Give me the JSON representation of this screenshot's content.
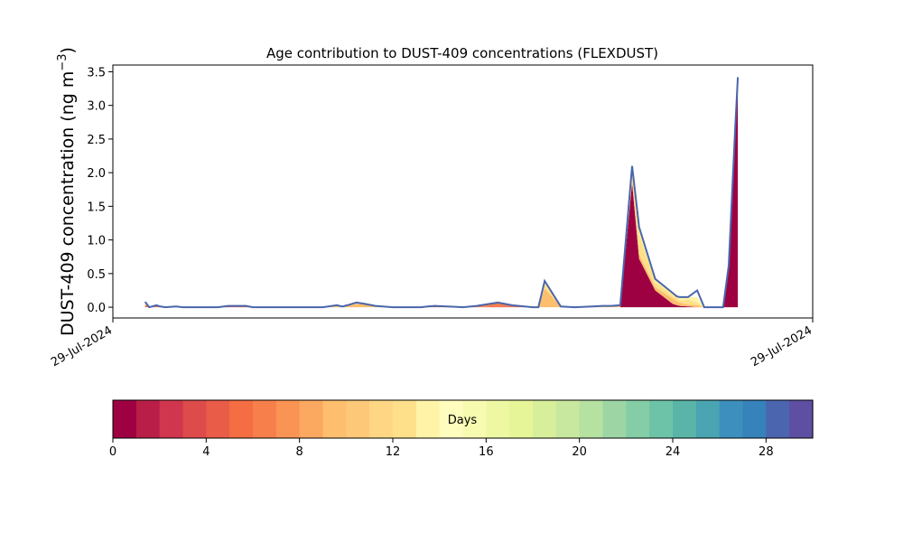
{
  "chart_data": {
    "type": "area",
    "title": "Age contribution to DUST-409 concentrations (FLEXDUST)",
    "ylabel_main": "DUST-409 concentration (ng m",
    "ylabel_sup": "−3",
    "ylabel_close": ")",
    "xlim": [
      0,
      1
    ],
    "ylim": [
      -0.16,
      3.6
    ],
    "yticks": [
      0.0,
      0.5,
      1.0,
      1.5,
      2.0,
      2.5,
      3.0,
      3.5
    ],
    "ytick_labels": [
      "0.0",
      "0.5",
      "1.0",
      "1.5",
      "2.0",
      "2.5",
      "3.0",
      "3.5"
    ],
    "xtick_labels": [
      "29-Jul-2024",
      "29-Jul-2024"
    ],
    "total_color": "#4a66ac",
    "x": [
      0.046,
      0.052,
      0.062,
      0.068,
      0.075,
      0.09,
      0.1,
      0.15,
      0.165,
      0.19,
      0.2,
      0.22,
      0.235,
      0.245,
      0.3,
      0.32,
      0.328,
      0.335,
      0.348,
      0.36,
      0.375,
      0.4,
      0.44,
      0.45,
      0.46,
      0.5,
      0.52,
      0.55,
      0.57,
      0.6,
      0.608,
      0.617,
      0.64,
      0.66,
      0.685,
      0.7,
      0.712,
      0.725,
      0.742,
      0.752,
      0.775,
      0.8,
      0.806,
      0.81,
      0.822,
      0.835,
      0.845,
      0.865,
      0.872,
      0.88,
      0.889,
      0.893
    ],
    "series": [
      {
        "day": 0,
        "color": "#9e0142",
        "values": [
          0,
          0,
          0,
          0,
          0,
          0,
          0,
          0,
          0,
          0,
          0,
          0,
          0,
          0,
          0,
          0,
          0,
          0,
          0,
          0,
          0,
          0,
          0,
          0,
          0,
          0,
          0,
          0,
          0,
          0,
          0,
          0,
          0,
          0,
          0,
          0,
          0,
          0,
          1.85,
          0.72,
          0.25,
          0.05,
          0.03,
          0.02,
          0.01,
          0,
          0,
          0,
          0,
          0.6,
          2.6,
          3.3
        ]
      },
      {
        "day": 3,
        "color": "#e95c47",
        "values": [
          0.02,
          0.0,
          0.01,
          0.0,
          0,
          0,
          0,
          0,
          0.01,
          0.01,
          0,
          0,
          0,
          0,
          0,
          0,
          0,
          0,
          0,
          0,
          0,
          0,
          0,
          0,
          0.01,
          0,
          0,
          0.01,
          0.01,
          0,
          0,
          0,
          0,
          0,
          0,
          0,
          0,
          0,
          0,
          0,
          0,
          0,
          0,
          0,
          0,
          0,
          0,
          0,
          0,
          0.01,
          0.01,
          0.01
        ]
      },
      {
        "day": 6,
        "color": "#f67f4b",
        "values": [
          0.02,
          0.0,
          0.01,
          0.0,
          0,
          0,
          0,
          0,
          0,
          0,
          0,
          0,
          0,
          0,
          0,
          0,
          0,
          0,
          0,
          0,
          0,
          0,
          0,
          0,
          0,
          0,
          0.02,
          0.06,
          0.02,
          0,
          0,
          0,
          0,
          0,
          0,
          0,
          0,
          0,
          0,
          0,
          0,
          0,
          0,
          0,
          0,
          0,
          0,
          0,
          0,
          0,
          0,
          0
        ]
      },
      {
        "day": 10,
        "color": "#fdbe6e",
        "values": [
          0.01,
          0.0,
          0.0,
          0.0,
          0,
          0,
          0,
          0,
          0.01,
          0.01,
          0,
          0,
          0,
          0,
          0,
          0.03,
          0.01,
          0.03,
          0.05,
          0.05,
          0.02,
          0,
          0,
          0.01,
          0.01,
          0,
          0,
          0,
          0,
          0,
          0,
          0.28,
          0.01,
          0,
          0.01,
          0.02,
          0.02,
          0.03,
          0.05,
          0.07,
          0.05,
          0.08,
          0.06,
          0.05,
          0.03,
          0.03,
          0.0,
          0,
          0,
          0.01,
          0.0,
          0.0
        ]
      },
      {
        "day": 12,
        "color": "#fee08b",
        "values": [
          0.01,
          0.0,
          0.0,
          0.0,
          0,
          0,
          0,
          0,
          0,
          0,
          0,
          0,
          0,
          0,
          0,
          0,
          0,
          0,
          0.02,
          0.0,
          0.0,
          0,
          0,
          0,
          0,
          0,
          0,
          0,
          0,
          0,
          0.0,
          0.07,
          0.0,
          0,
          0,
          0,
          0,
          0,
          0.1,
          0.3,
          0.08,
          0.05,
          0.05,
          0.03,
          0.07,
          0.04,
          0.0,
          0,
          0,
          0,
          0,
          0
        ]
      },
      {
        "day": 14,
        "color": "#fff3a8",
        "values": [
          0.01,
          0.0,
          0.0,
          0.0,
          0,
          0,
          0,
          0,
          0,
          0,
          0,
          0,
          0,
          0,
          0,
          0,
          0,
          0,
          0,
          0,
          0,
          0,
          0,
          0,
          0,
          0,
          0,
          0,
          0,
          0,
          0,
          0.04,
          0,
          0,
          0,
          0,
          0,
          0,
          0.1,
          0.1,
          0.04,
          0.03,
          0.02,
          0.05,
          0.04,
          0.08,
          0.0,
          0,
          0,
          0,
          0,
          0
        ]
      }
    ],
    "total": [
      0.08,
      0.0,
      0.03,
      0.01,
      0.0,
      0.01,
      0.0,
      0.0,
      0.02,
      0.02,
      0.0,
      0.0,
      0.0,
      0.0,
      0.0,
      0.03,
      0.01,
      0.03,
      0.07,
      0.05,
      0.02,
      0.0,
      0.0,
      0.01,
      0.02,
      0.0,
      0.02,
      0.07,
      0.03,
      0.0,
      0.0,
      0.39,
      0.01,
      0.0,
      0.01,
      0.02,
      0.02,
      0.03,
      2.1,
      1.19,
      0.42,
      0.21,
      0.16,
      0.15,
      0.15,
      0.25,
      0.0,
      0.0,
      0.0,
      0.62,
      2.62,
      3.42
    ]
  },
  "colorbar": {
    "label": "Days",
    "vmin": 0,
    "vmax": 30,
    "ticks": [
      0,
      4,
      8,
      12,
      16,
      20,
      24,
      28
    ],
    "tick_labels": [
      "0",
      "4",
      "8",
      "12",
      "16",
      "20",
      "24",
      "28"
    ],
    "colors": [
      "#9e0142",
      "#b91e48",
      "#d0364d",
      "#dd4b4b",
      "#e95c47",
      "#f46d43",
      "#f67f4b",
      "#f99455",
      "#fba860",
      "#fdbe6e",
      "#fdc878",
      "#fed684",
      "#fee08b",
      "#fff3a8",
      "#fffdbe",
      "#f7fbb0",
      "#eef8a3",
      "#e6f598",
      "#d7ef9b",
      "#c7e89e",
      "#b5e1a1",
      "#9dd6a4",
      "#84cda6",
      "#6cc3a7",
      "#5ab4a8",
      "#4aa4b2",
      "#3d8fbd",
      "#3682ba",
      "#4b65ae",
      "#5e4fa2"
    ]
  }
}
